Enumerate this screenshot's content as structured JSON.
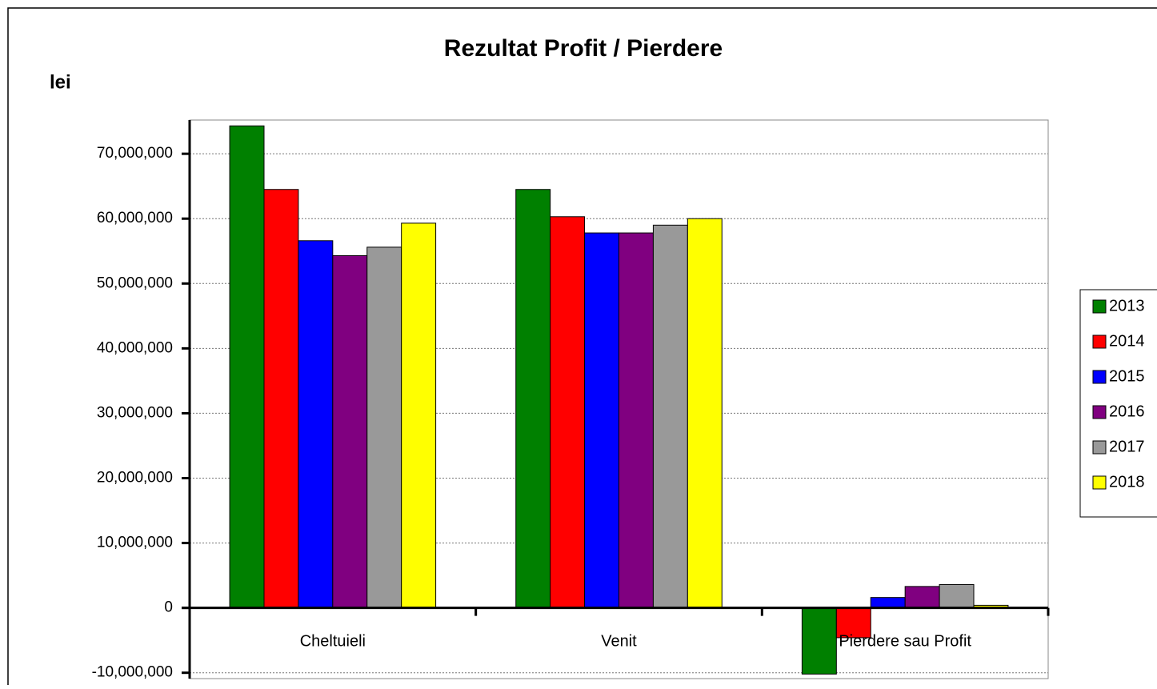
{
  "chart_data": {
    "type": "bar",
    "title": "Rezultat Profit / Pierdere",
    "y_label": "lei",
    "categories": [
      "Cheltuieli",
      "Venit",
      "Pierdere sau Profit"
    ],
    "series": [
      {
        "name": "2013",
        "color": "#008000",
        "values": [
          74300000,
          64500000,
          -10200000
        ]
      },
      {
        "name": "2014",
        "color": "#ff0000",
        "values": [
          64500000,
          60300000,
          -4600000
        ]
      },
      {
        "name": "2015",
        "color": "#0000ff",
        "values": [
          56600000,
          57800000,
          1600000
        ]
      },
      {
        "name": "2016",
        "color": "#800080",
        "values": [
          54300000,
          57800000,
          3300000
        ]
      },
      {
        "name": "2017",
        "color": "#999999",
        "values": [
          55600000,
          59000000,
          3600000
        ]
      },
      {
        "name": "2018",
        "color": "#ffff00",
        "values": [
          59300000,
          60000000,
          400000
        ]
      }
    ],
    "ylim": [
      -10900000,
      75200000
    ],
    "yticks": [
      {
        "value": -10000000,
        "label": "-10,000,000"
      },
      0,
      {
        "value": 10000000,
        "label": "10,000,000"
      },
      {
        "value": 20000000,
        "label": "20,000,000"
      },
      {
        "value": 30000000,
        "label": "30,000,000"
      },
      {
        "value": 40000000,
        "label": "40,000,000"
      },
      {
        "value": 50000000,
        "label": "50,000,000"
      },
      {
        "value": 60000000,
        "label": "60,000,000"
      },
      {
        "value": 70000000,
        "label": "70,000,000"
      }
    ],
    "grid": true,
    "legend": "right"
  }
}
